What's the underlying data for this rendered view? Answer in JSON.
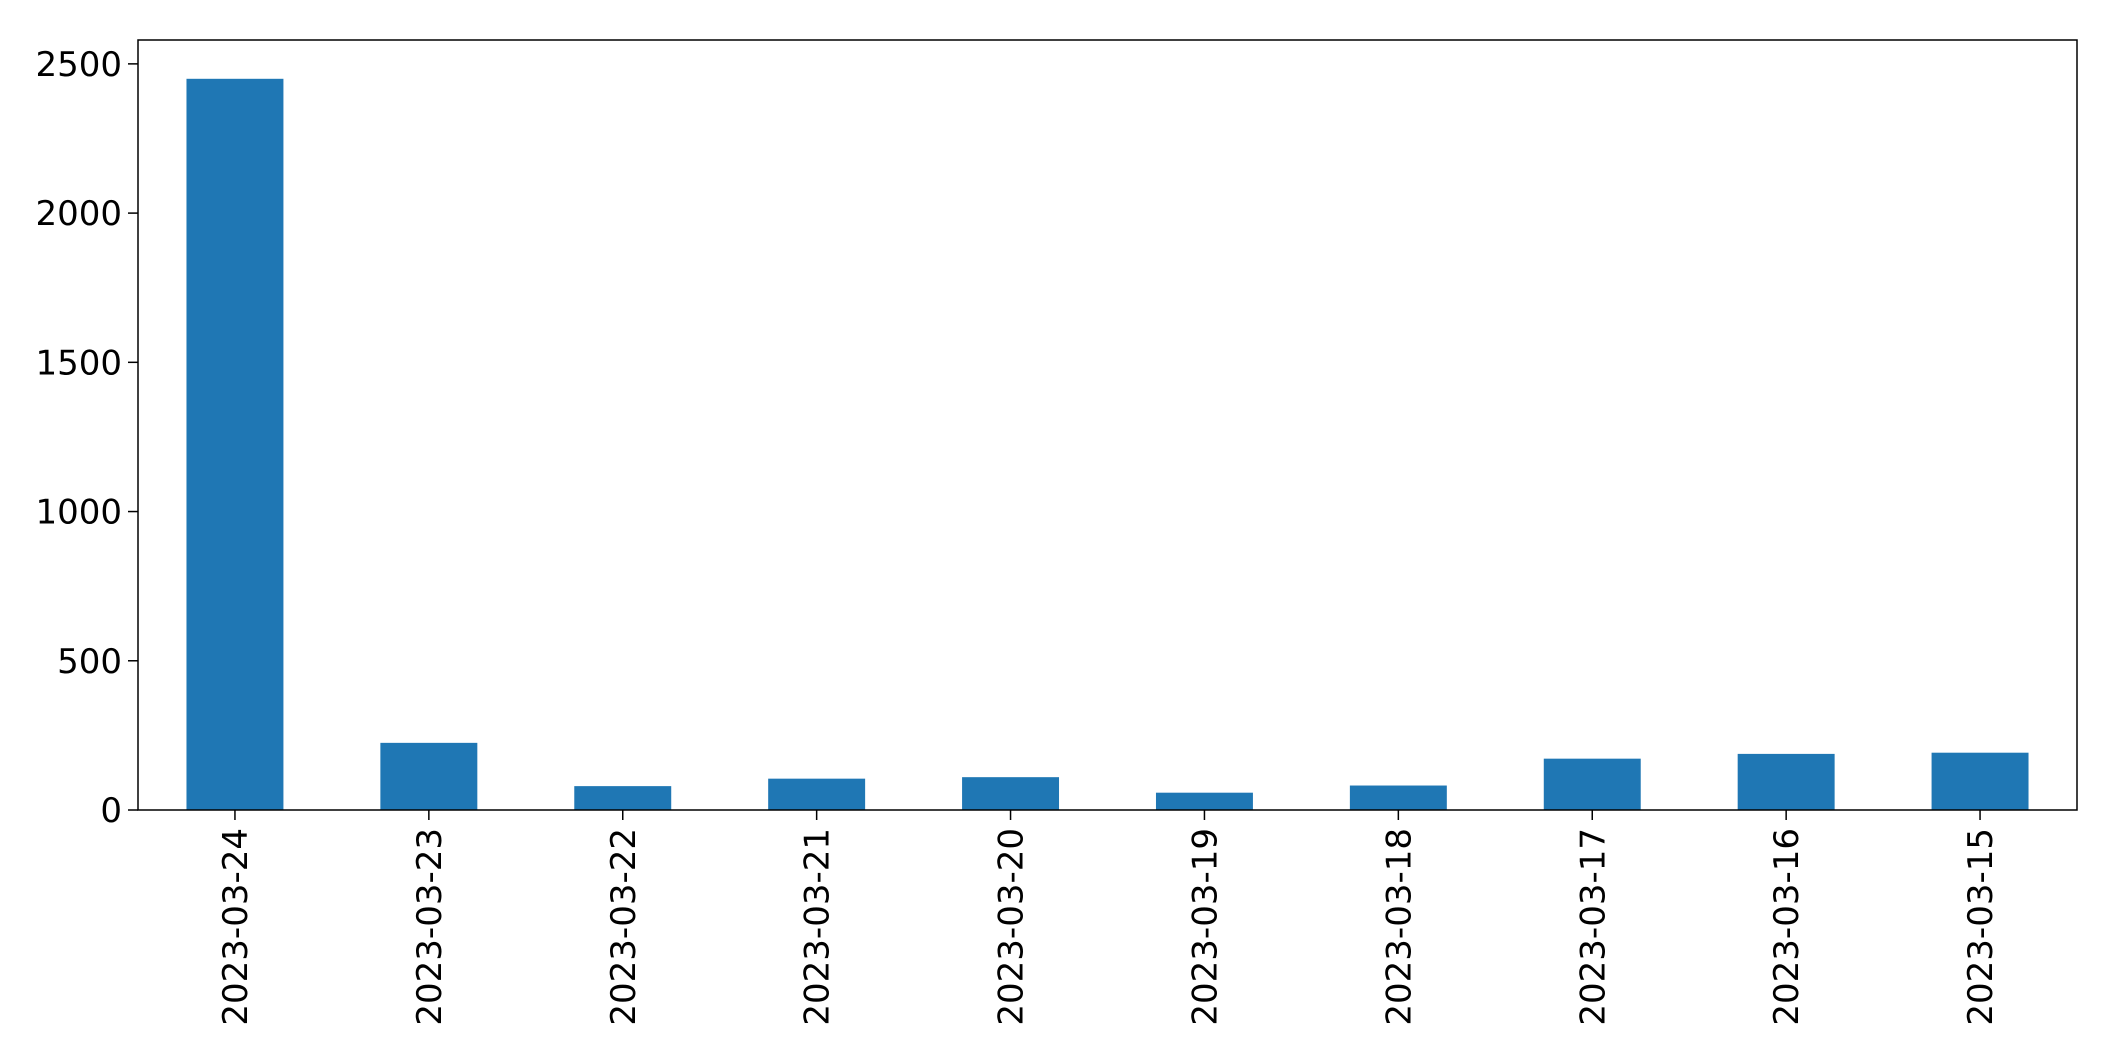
{
  "chart_data": {
    "type": "bar",
    "categories": [
      "2023-03-24",
      "2023-03-23",
      "2023-03-22",
      "2023-03-21",
      "2023-03-20",
      "2023-03-19",
      "2023-03-18",
      "2023-03-17",
      "2023-03-16",
      "2023-03-15"
    ],
    "values": [
      2450,
      225,
      80,
      105,
      110,
      58,
      82,
      172,
      188,
      192
    ],
    "title": "",
    "xlabel": "",
    "ylabel": "",
    "ylim": [
      0,
      2580
    ],
    "yticks": [
      0,
      500,
      1000,
      1500,
      2000,
      2500
    ],
    "xtick_rotation": 90,
    "grid": false,
    "legend": "none",
    "bar_color": "#1f77b4"
  }
}
